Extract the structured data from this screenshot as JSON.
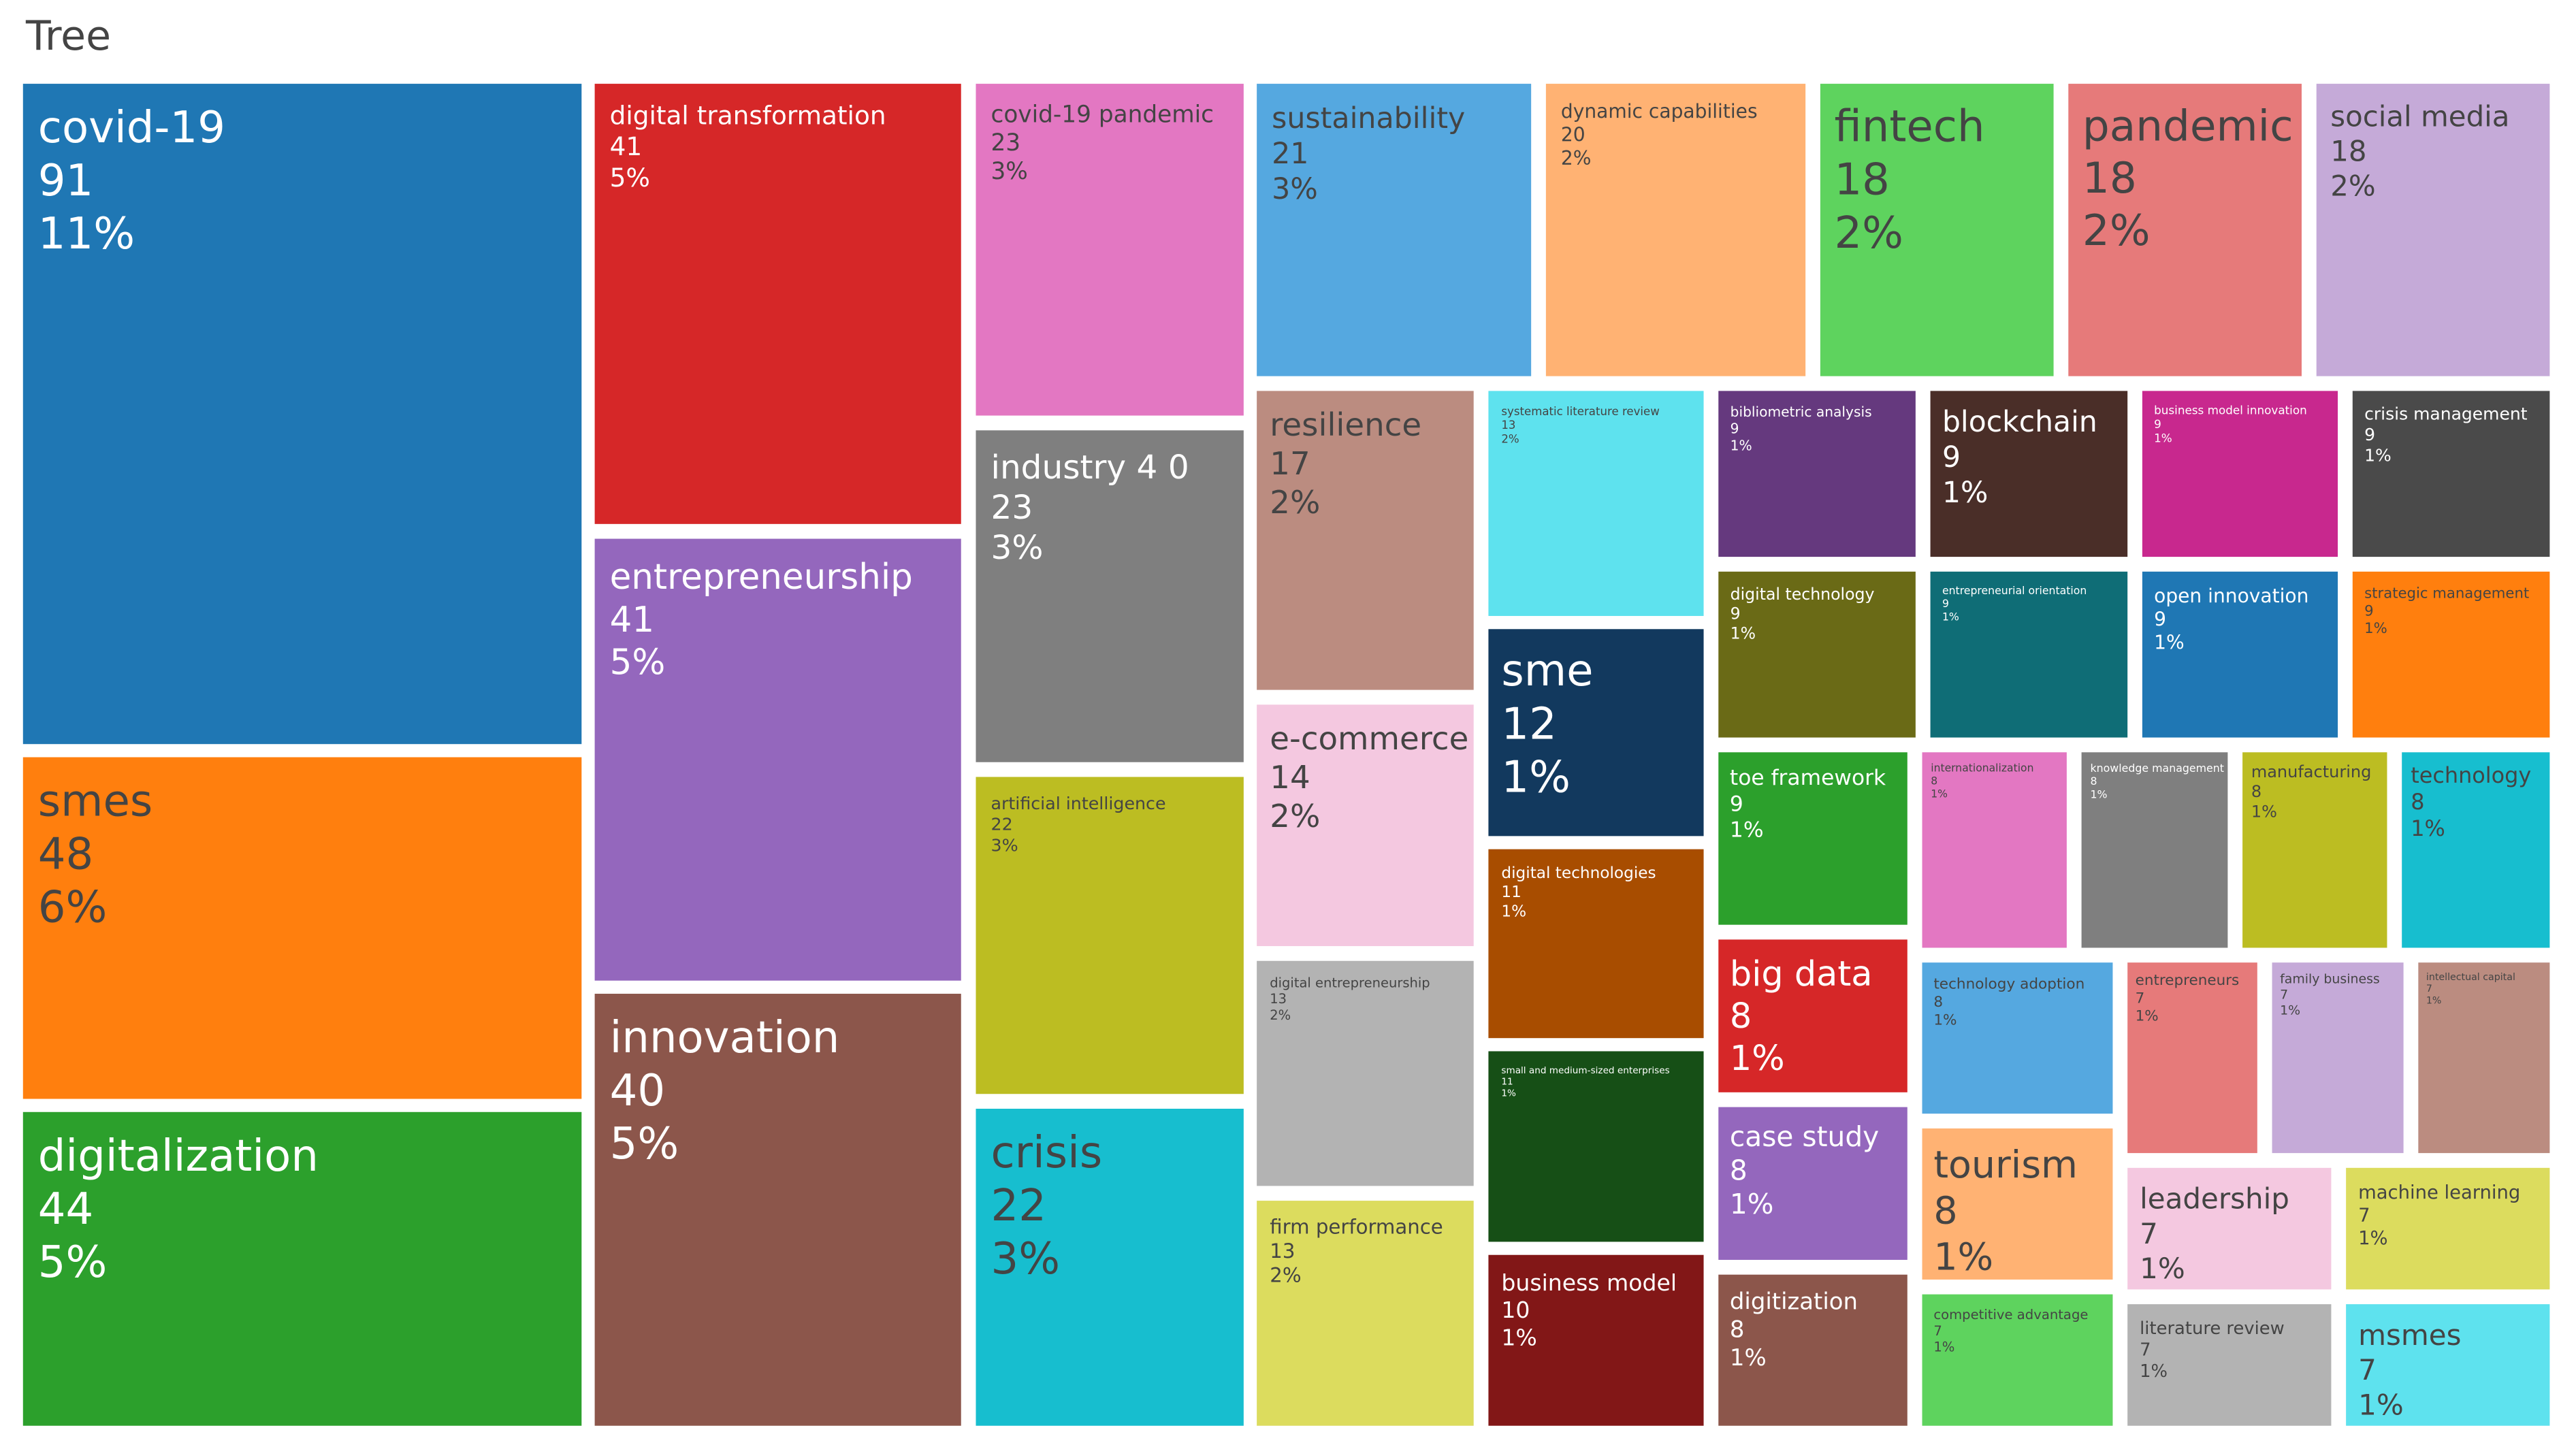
{
  "chart_data": {
    "type": "treemap",
    "title": "Tree",
    "items": [
      {
        "label": "covid-19",
        "value": 91,
        "pct": "11%",
        "color": "#1f77b4",
        "text_color": "#ffffff"
      },
      {
        "label": "smes",
        "value": 48,
        "pct": "6%",
        "color": "#ff7f0e",
        "text_color": "#444444"
      },
      {
        "label": "digitalization",
        "value": 44,
        "pct": "5%",
        "color": "#2ca02c",
        "text_color": "#ffffff"
      },
      {
        "label": "digital transformation",
        "value": 41,
        "pct": "5%",
        "color": "#d62728",
        "text_color": "#ffffff"
      },
      {
        "label": "entrepreneurship",
        "value": 41,
        "pct": "5%",
        "color": "#9467bd",
        "text_color": "#ffffff"
      },
      {
        "label": "innovation",
        "value": 40,
        "pct": "5%",
        "color": "#8c564b",
        "text_color": "#ffffff"
      },
      {
        "label": "covid-19 pandemic",
        "value": 23,
        "pct": "3%",
        "color": "#e377c2",
        "text_color": "#444444"
      },
      {
        "label": "industry 4 0",
        "value": 23,
        "pct": "3%",
        "color": "#7f7f7f",
        "text_color": "#ffffff"
      },
      {
        "label": "artificial intelligence",
        "value": 22,
        "pct": "3%",
        "color": "#bcbd22",
        "text_color": "#444444"
      },
      {
        "label": "crisis",
        "value": 22,
        "pct": "3%",
        "color": "#17becf",
        "text_color": "#444444"
      },
      {
        "label": "sustainability",
        "value": 21,
        "pct": "3%",
        "color": "#55a8e0",
        "text_color": "#444444"
      },
      {
        "label": "dynamic capabilities",
        "value": 20,
        "pct": "2%",
        "color": "#ffb273",
        "text_color": "#444444"
      },
      {
        "label": "fintech",
        "value": 18,
        "pct": "2%",
        "color": "#5ed35e",
        "text_color": "#444444"
      },
      {
        "label": "pandemic",
        "value": 18,
        "pct": "2%",
        "color": "#e67a7a",
        "text_color": "#444444"
      },
      {
        "label": "social media",
        "value": 18,
        "pct": "2%",
        "color": "#c5aad8",
        "text_color": "#444444"
      },
      {
        "label": "resilience",
        "value": 17,
        "pct": "2%",
        "color": "#bb8c80",
        "text_color": "#444444"
      },
      {
        "label": "e-commerce",
        "value": 14,
        "pct": "2%",
        "color": "#f4c8e0",
        "text_color": "#444444"
      },
      {
        "label": "digital entrepreneurship",
        "value": 13,
        "pct": "2%",
        "color": "#b3b3b3",
        "text_color": "#444444"
      },
      {
        "label": "firm performance",
        "value": 13,
        "pct": "2%",
        "color": "#dcdc5e",
        "text_color": "#444444"
      },
      {
        "label": "systematic literature review",
        "value": 13,
        "pct": "2%",
        "color": "#5ee2ee",
        "text_color": "#444444"
      },
      {
        "label": "sme",
        "value": 12,
        "pct": "1%",
        "color": "#12395e",
        "text_color": "#ffffff"
      },
      {
        "label": "digital technologies",
        "value": 11,
        "pct": "1%",
        "color": "#a84d00",
        "text_color": "#ffffff"
      },
      {
        "label": "small and medium-sized enterprises",
        "value": 11,
        "pct": "1%",
        "color": "#164f16",
        "text_color": "#ffffff"
      },
      {
        "label": "business model",
        "value": 10,
        "pct": "1%",
        "color": "#821717",
        "text_color": "#ffffff"
      },
      {
        "label": "bibliometric analysis",
        "value": 9,
        "pct": "1%",
        "color": "#65397e",
        "text_color": "#ffffff"
      },
      {
        "label": "blockchain",
        "value": 9,
        "pct": "1%",
        "color": "#4a2e28",
        "text_color": "#ffffff"
      },
      {
        "label": "business model innovation",
        "value": 9,
        "pct": "1%",
        "color": "#c8288e",
        "text_color": "#ffffff"
      },
      {
        "label": "crisis management",
        "value": 9,
        "pct": "1%",
        "color": "#4a4a4a",
        "text_color": "#ffffff"
      },
      {
        "label": "digital technology",
        "value": 9,
        "pct": "1%",
        "color": "#6a6a16",
        "text_color": "#ffffff"
      },
      {
        "label": "entrepreneurial orientation",
        "value": 9,
        "pct": "1%",
        "color": "#0f6d76",
        "text_color": "#ffffff"
      },
      {
        "label": "open innovation",
        "value": 9,
        "pct": "1%",
        "color": "#1f77b4",
        "text_color": "#ffffff"
      },
      {
        "label": "strategic management",
        "value": 9,
        "pct": "1%",
        "color": "#ff7f0e",
        "text_color": "#444444"
      },
      {
        "label": "toe framework",
        "value": 9,
        "pct": "1%",
        "color": "#2ca02c",
        "text_color": "#ffffff"
      },
      {
        "label": "big data",
        "value": 8,
        "pct": "1%",
        "color": "#d62728",
        "text_color": "#ffffff"
      },
      {
        "label": "case study",
        "value": 8,
        "pct": "1%",
        "color": "#9467bd",
        "text_color": "#ffffff"
      },
      {
        "label": "digitization",
        "value": 8,
        "pct": "1%",
        "color": "#8c564b",
        "text_color": "#ffffff"
      },
      {
        "label": "internationalization",
        "value": 8,
        "pct": "1%",
        "color": "#e377c2",
        "text_color": "#444444"
      },
      {
        "label": "knowledge management",
        "value": 8,
        "pct": "1%",
        "color": "#7f7f7f",
        "text_color": "#ffffff"
      },
      {
        "label": "manufacturing",
        "value": 8,
        "pct": "1%",
        "color": "#bcbd22",
        "text_color": "#444444"
      },
      {
        "label": "technology",
        "value": 8,
        "pct": "1%",
        "color": "#17becf",
        "text_color": "#444444"
      },
      {
        "label": "technology adoption",
        "value": 8,
        "pct": "1%",
        "color": "#55a8e0",
        "text_color": "#444444"
      },
      {
        "label": "tourism",
        "value": 8,
        "pct": "1%",
        "color": "#ffb273",
        "text_color": "#444444"
      },
      {
        "label": "competitive advantage",
        "value": 7,
        "pct": "1%",
        "color": "#5ed35e",
        "text_color": "#444444"
      },
      {
        "label": "entrepreneurs",
        "value": 7,
        "pct": "1%",
        "color": "#e67a7a",
        "text_color": "#444444"
      },
      {
        "label": "family business",
        "value": 7,
        "pct": "1%",
        "color": "#c5aad8",
        "text_color": "#444444"
      },
      {
        "label": "intellectual capital",
        "value": 7,
        "pct": "1%",
        "color": "#bb8c80",
        "text_color": "#444444"
      },
      {
        "label": "leadership",
        "value": 7,
        "pct": "1%",
        "color": "#f4c8e0",
        "text_color": "#444444"
      },
      {
        "label": "literature review",
        "value": 7,
        "pct": "1%",
        "color": "#b3b3b3",
        "text_color": "#444444"
      },
      {
        "label": "machine learning",
        "value": 7,
        "pct": "1%",
        "color": "#dcdc5e",
        "text_color": "#444444"
      },
      {
        "label": "msmes",
        "value": 7,
        "pct": "1%",
        "color": "#5ee2ee",
        "text_color": "#444444"
      }
    ]
  }
}
